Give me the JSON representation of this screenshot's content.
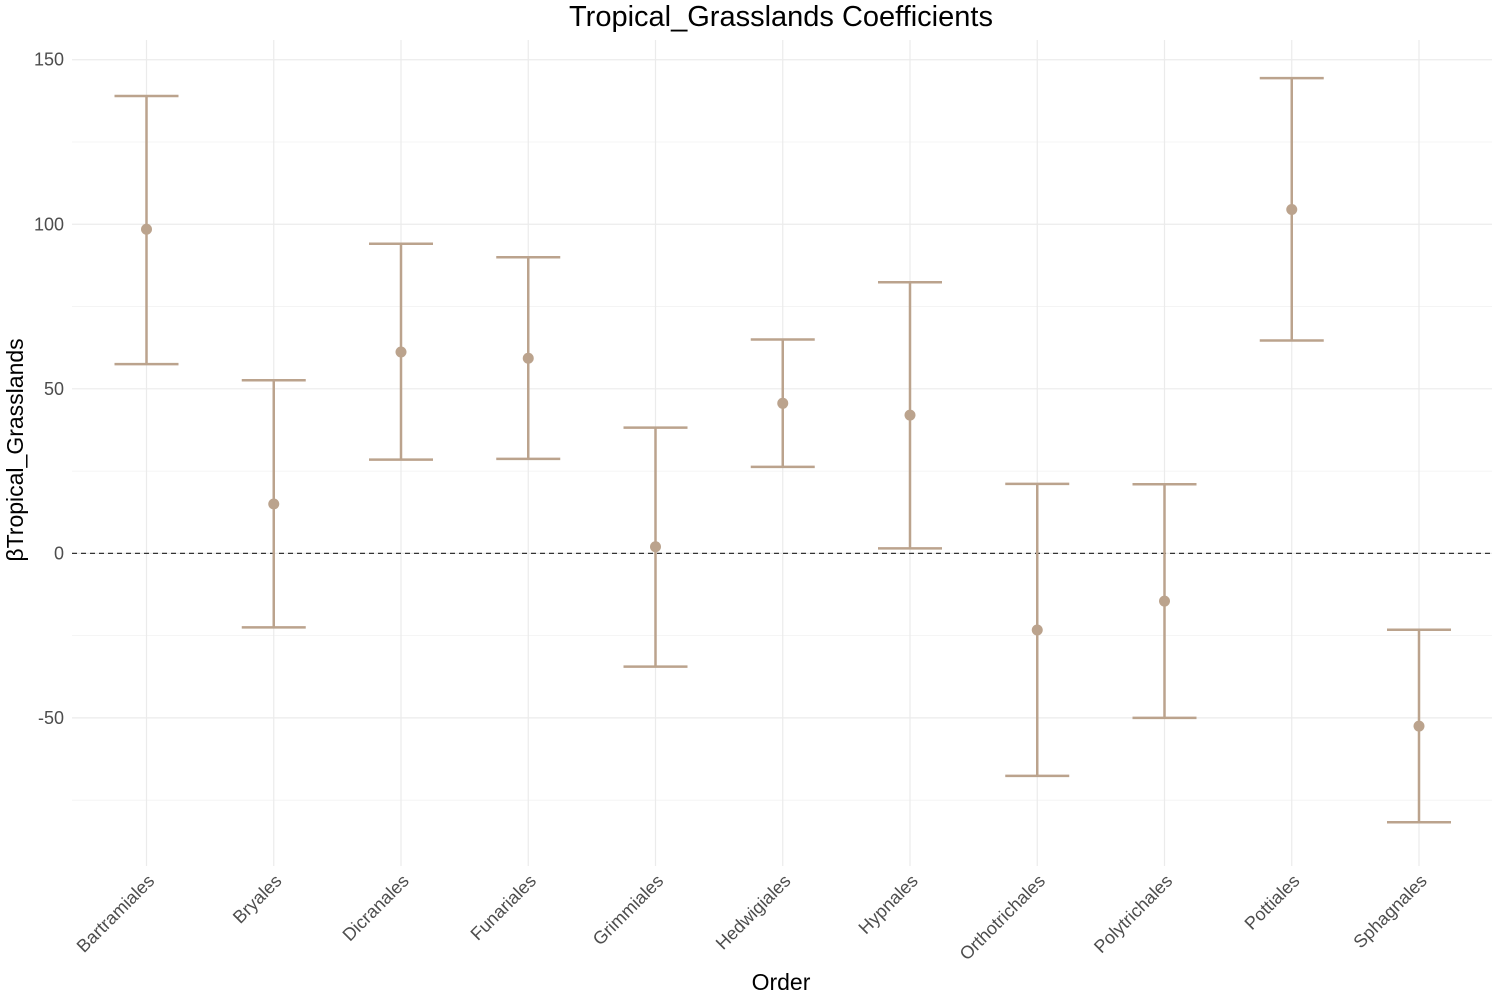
{
  "chart_data": {
    "type": "scatter",
    "title": "Tropical_Grasslands Coefficients",
    "xlabel": "Order",
    "ylabel": "βTropical_Grasslands",
    "categories": [
      "Bartramiales",
      "Bryales",
      "Dicranales",
      "Funariales",
      "Grimmiales",
      "Hedwigiales",
      "Hypnales",
      "Orthotrichales",
      "Polytrichales",
      "Pottiales",
      "Sphagnales"
    ],
    "series": [
      {
        "estimate": [
          98.5,
          15.0,
          61.2,
          59.3,
          2.0,
          45.6,
          42.0,
          -23.3,
          -14.5,
          104.5,
          -52.5
        ],
        "lower": [
          57.5,
          -22.5,
          28.5,
          28.7,
          -34.4,
          26.3,
          1.5,
          -67.6,
          -50.0,
          64.7,
          -81.7
        ],
        "upper": [
          139.0,
          52.6,
          94.1,
          90.0,
          38.2,
          65.0,
          82.4,
          21.1,
          21.0,
          144.4,
          -23.2
        ]
      }
    ],
    "ylim": [
      -95,
      156
    ],
    "yticks": [
      -50,
      0,
      50,
      100,
      150
    ],
    "ytick_labels": [
      "-50",
      "0",
      "50",
      "100",
      "150"
    ],
    "y_minor_gridlines": [
      -75,
      -25,
      25,
      75,
      125
    ],
    "reference_line": 0,
    "grid": true,
    "legend": "none",
    "color": "#bba38d",
    "reference_line_color": "#333333"
  }
}
